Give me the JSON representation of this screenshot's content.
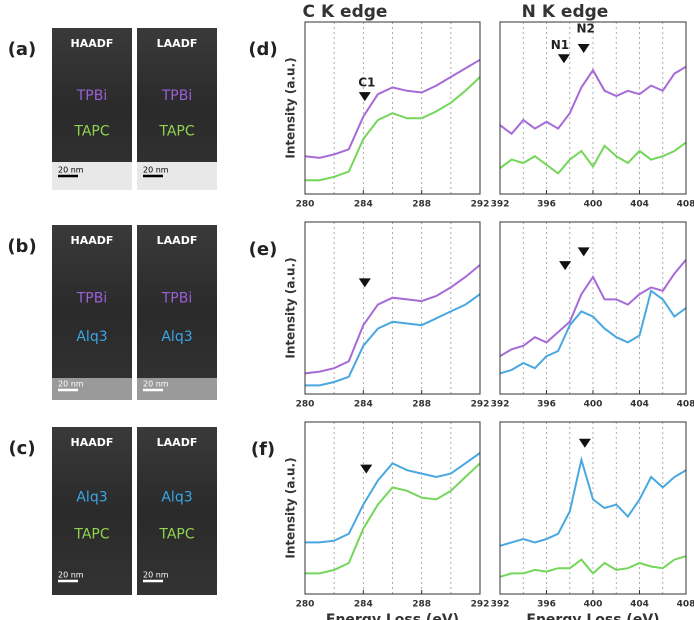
{
  "column_titles": [
    "C K edge",
    "N K edge"
  ],
  "images": [
    {
      "label": "(a)",
      "tiles": [
        {
          "detector": "HAADF",
          "materials": [
            {
              "name": "TPBi",
              "color": "#9b5fd6"
            },
            {
              "name": "TAPC",
              "color": "#8fd450"
            }
          ],
          "scale_bar": "20 nm"
        },
        {
          "detector": "LAADF",
          "materials": [
            {
              "name": "TPBi",
              "color": "#9b5fd6"
            },
            {
              "name": "TAPC",
              "color": "#8fd450"
            }
          ],
          "scale_bar": "20 nm"
        }
      ]
    },
    {
      "label": "(b)",
      "tiles": [
        {
          "detector": "HAADF",
          "materials": [
            {
              "name": "TPBi",
              "color": "#9b5fd6"
            },
            {
              "name": "Alq3",
              "color": "#3aa6e6"
            }
          ],
          "scale_bar": "20 nm"
        },
        {
          "detector": "LAADF",
          "materials": [
            {
              "name": "TPBi",
              "color": "#9b5fd6"
            },
            {
              "name": "Alq3",
              "color": "#3aa6e6"
            }
          ],
          "scale_bar": "20 nm"
        }
      ]
    },
    {
      "label": "(c)",
      "tiles": [
        {
          "detector": "HAADF",
          "materials": [
            {
              "name": "Alq3",
              "color": "#3aa6e6"
            },
            {
              "name": "TAPC",
              "color": "#8fd450"
            }
          ],
          "scale_bar": "20 nm"
        },
        {
          "detector": "LAADF",
          "materials": [
            {
              "name": "Alq3",
              "color": "#3aa6e6"
            },
            {
              "name": "TAPC",
              "color": "#8fd450"
            }
          ],
          "scale_bar": "20 nm"
        }
      ]
    }
  ],
  "chart_data": [
    {
      "type": "line",
      "label": "(d)",
      "ylabel": "Intensity (a.u.)",
      "x": [
        280,
        281,
        282,
        283,
        284,
        285,
        286,
        287,
        288,
        289,
        290,
        291,
        292
      ],
      "xlim": [
        280,
        292
      ],
      "xticks": [
        280,
        284,
        288,
        292
      ],
      "xgrid": [
        282,
        284,
        286,
        288,
        290
      ],
      "ylim": [
        0,
        100
      ],
      "series": [
        {
          "color": "#a66bd8",
          "values": [
            22,
            21,
            23,
            26,
            45,
            58,
            62,
            60,
            59,
            63,
            68,
            73,
            78
          ]
        },
        {
          "color": "#74d65a",
          "values": [
            8,
            8,
            10,
            13,
            32,
            43,
            47,
            44,
            44,
            48,
            53,
            60,
            68
          ]
        }
      ],
      "annotations": [
        {
          "x": 284.1,
          "y": 54,
          "label": "C1"
        }
      ]
    },
    {
      "type": "line",
      "x": [
        392,
        393,
        394,
        395,
        396,
        397,
        398,
        399,
        400,
        401,
        402,
        403,
        404,
        405,
        406,
        407,
        408
      ],
      "xlim": [
        392,
        408
      ],
      "xticks": [
        392,
        396,
        400,
        404,
        408
      ],
      "xgrid": [
        394,
        396,
        398,
        400,
        402,
        404,
        406
      ],
      "ylim": [
        0,
        100
      ],
      "series": [
        {
          "color": "#a66bd8",
          "values": [
            40,
            35,
            43,
            38,
            42,
            38,
            47,
            62,
            72,
            60,
            57,
            60,
            58,
            63,
            60,
            70,
            74
          ]
        },
        {
          "color": "#74d65a",
          "values": [
            15,
            20,
            18,
            22,
            17,
            12,
            20,
            25,
            16,
            28,
            22,
            18,
            25,
            20,
            22,
            25,
            30
          ]
        }
      ],
      "annotations": [
        {
          "x": 397.5,
          "y": 76,
          "label": "N1"
        },
        {
          "x": 399.2,
          "y": 82,
          "label": "N2"
        }
      ]
    },
    {
      "type": "line",
      "label": "(e)",
      "ylabel": "Intensity (a.u.)",
      "x": [
        280,
        281,
        282,
        283,
        284,
        285,
        286,
        287,
        288,
        289,
        290,
        291,
        292
      ],
      "xlim": [
        280,
        292
      ],
      "xticks": [
        280,
        284,
        288,
        292
      ],
      "xgrid": [
        282,
        284,
        286,
        288,
        290
      ],
      "ylim": [
        0,
        100
      ],
      "series": [
        {
          "color": "#a66bd8",
          "values": [
            12,
            13,
            15,
            19,
            40,
            52,
            56,
            55,
            54,
            57,
            62,
            68,
            75
          ]
        },
        {
          "color": "#4aa8e0",
          "values": [
            5,
            5,
            7,
            10,
            28,
            38,
            42,
            41,
            40,
            44,
            48,
            52,
            58
          ]
        }
      ],
      "annotations": [
        {
          "x": 284.1,
          "y": 62
        }
      ]
    },
    {
      "type": "line",
      "x": [
        392,
        393,
        394,
        395,
        396,
        397,
        398,
        399,
        400,
        401,
        402,
        403,
        404,
        405,
        406,
        407,
        408
      ],
      "xlim": [
        392,
        408
      ],
      "xticks": [
        392,
        396,
        400,
        404,
        408
      ],
      "xgrid": [
        394,
        396,
        398,
        400,
        402,
        404,
        406
      ],
      "ylim": [
        0,
        100
      ],
      "series": [
        {
          "color": "#a66bd8",
          "values": [
            22,
            26,
            28,
            33,
            30,
            36,
            42,
            58,
            68,
            55,
            55,
            52,
            58,
            62,
            60,
            70,
            78
          ]
        },
        {
          "color": "#4aa8e0",
          "values": [
            12,
            14,
            18,
            15,
            22,
            25,
            40,
            48,
            45,
            38,
            33,
            30,
            34,
            60,
            55,
            45,
            50
          ]
        }
      ],
      "annotations": [
        {
          "x": 397.6,
          "y": 72
        },
        {
          "x": 399.2,
          "y": 80
        }
      ]
    },
    {
      "type": "line",
      "label": "(f)",
      "ylabel": "Intensity (a.u.)",
      "xlabel": "Energy Loss (eV)",
      "x": [
        280,
        281,
        282,
        283,
        284,
        285,
        286,
        287,
        288,
        289,
        290,
        291,
        292
      ],
      "xlim": [
        280,
        292
      ],
      "xticks": [
        280,
        284,
        288,
        292
      ],
      "xgrid": [
        282,
        284,
        286,
        288,
        290
      ],
      "ylim": [
        0,
        100
      ],
      "series": [
        {
          "color": "#4aa8e0",
          "values": [
            30,
            30,
            31,
            35,
            52,
            66,
            76,
            72,
            70,
            68,
            70,
            76,
            82
          ]
        },
        {
          "color": "#74d65a",
          "values": [
            12,
            12,
            14,
            18,
            38,
            52,
            62,
            60,
            56,
            55,
            60,
            68,
            76
          ]
        }
      ],
      "annotations": [
        {
          "x": 284.2,
          "y": 70
        }
      ]
    },
    {
      "type": "line",
      "xlabel": "Energy Loss (eV)",
      "x": [
        392,
        393,
        394,
        395,
        396,
        397,
        398,
        399,
        400,
        401,
        402,
        403,
        404,
        405,
        406,
        407,
        408
      ],
      "xlim": [
        392,
        408
      ],
      "xticks": [
        392,
        396,
        400,
        404,
        408
      ],
      "xgrid": [
        394,
        396,
        398,
        400,
        402,
        404,
        406
      ],
      "ylim": [
        0,
        100
      ],
      "series": [
        {
          "color": "#4aa8e0",
          "values": [
            28,
            30,
            32,
            30,
            32,
            35,
            48,
            78,
            55,
            50,
            52,
            45,
            55,
            68,
            62,
            68,
            72
          ]
        },
        {
          "color": "#74d65a",
          "values": [
            10,
            12,
            12,
            14,
            13,
            15,
            15,
            20,
            12,
            18,
            14,
            15,
            18,
            16,
            15,
            20,
            22
          ]
        }
      ],
      "annotations": [
        {
          "x": 399.3,
          "y": 85
        }
      ]
    }
  ]
}
